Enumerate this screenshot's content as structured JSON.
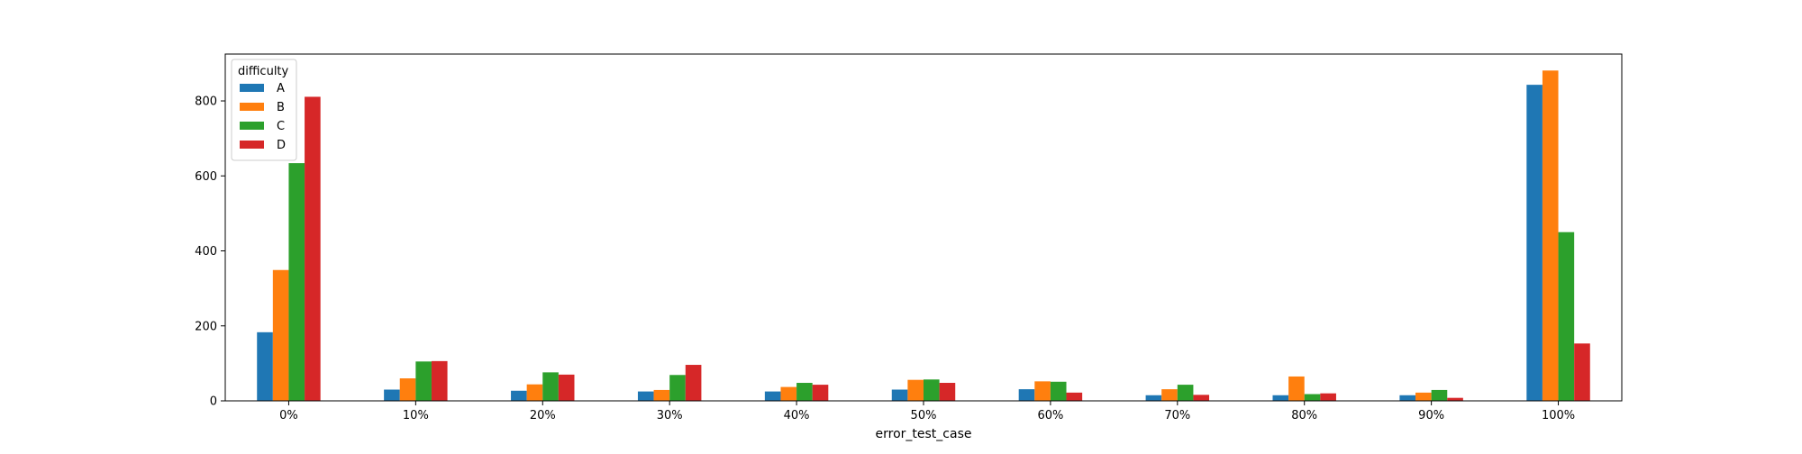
{
  "chart_data": {
    "type": "bar",
    "xlabel": "error_test_case",
    "ylabel": "",
    "ylim": [
      0,
      925
    ],
    "yticks": [
      0,
      200,
      400,
      600,
      800
    ],
    "grid": false,
    "legend_title": "difficulty",
    "legend_position": "upper-left",
    "categories": [
      "0%",
      "10%",
      "20%",
      "30%",
      "40%",
      "50%",
      "60%",
      "70%",
      "80%",
      "90%",
      "100%"
    ],
    "series": [
      {
        "name": "A",
        "color": "#1f77b4",
        "values": [
          183,
          30,
          27,
          25,
          25,
          30,
          31,
          15,
          15,
          15,
          843
        ]
      },
      {
        "name": "B",
        "color": "#ff7f0e",
        "values": [
          349,
          60,
          44,
          29,
          37,
          56,
          52,
          31,
          65,
          22,
          881
        ]
      },
      {
        "name": "C",
        "color": "#2ca02c",
        "values": [
          634,
          105,
          76,
          69,
          48,
          57,
          51,
          43,
          18,
          29,
          450
        ]
      },
      {
        "name": "D",
        "color": "#d62728",
        "values": [
          811,
          106,
          70,
          96,
          43,
          48,
          22,
          16,
          20,
          8,
          153
        ]
      }
    ]
  }
}
